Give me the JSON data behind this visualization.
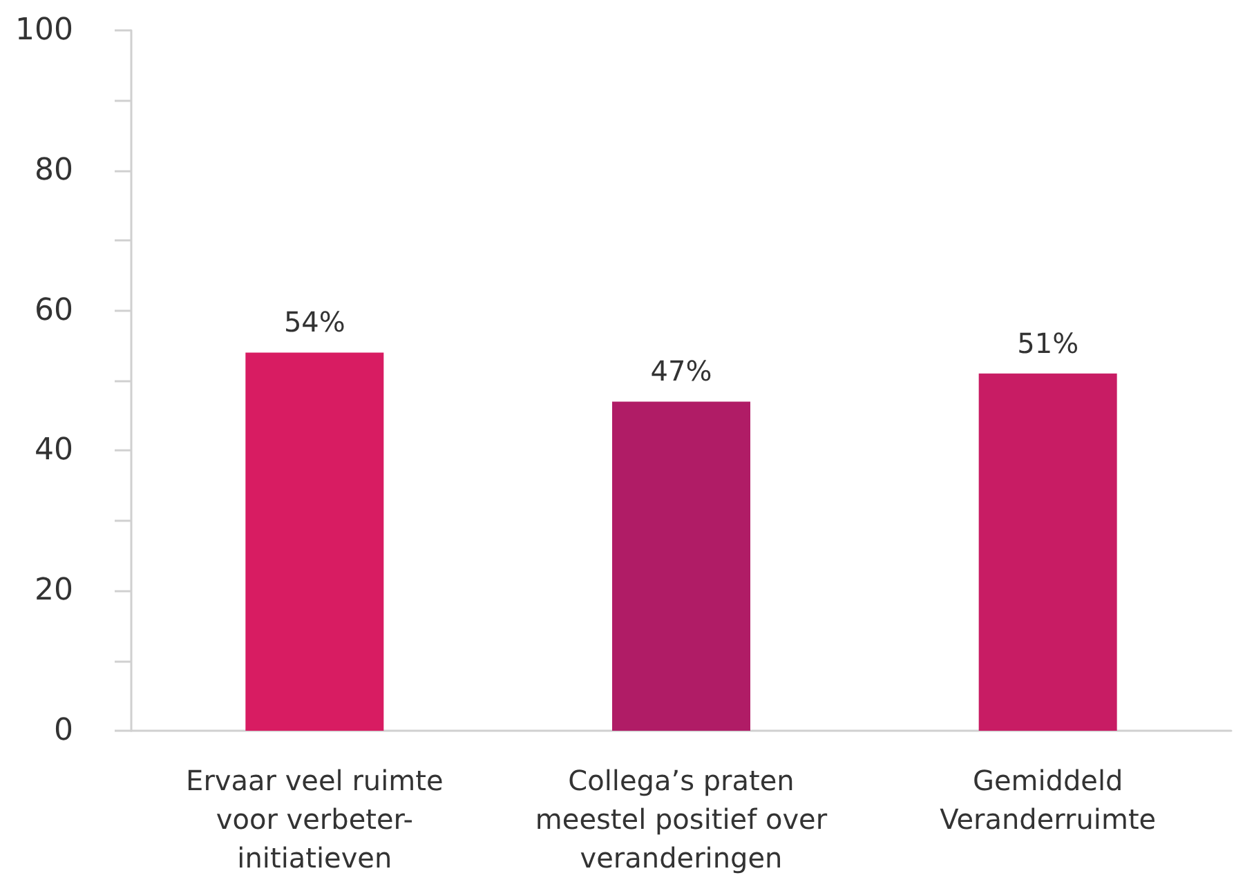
{
  "chart_data": {
    "type": "bar",
    "categories": [
      "Ervaar veel ruimte voor verbeter-initiatieven",
      "Collega’s praten meestel positief over veranderingen",
      "Gemiddeld Veranderruimte"
    ],
    "values": [
      54,
      47,
      51
    ],
    "colors": [
      "#d81c62",
      "#b01c66",
      "#c81c64"
    ],
    "value_labels": [
      "54%",
      "47%",
      "51%"
    ],
    "ylim": [
      0,
      100
    ],
    "yticks": [
      0,
      {
        "value": 10,
        "label": null
      },
      20,
      {
        "value": 30,
        "label": null
      },
      40,
      {
        "value": 50,
        "label": null
      },
      60,
      {
        "value": 70,
        "label": null
      },
      80,
      {
        "value": 90,
        "label": null
      },
      100
    ],
    "grid": false
  }
}
